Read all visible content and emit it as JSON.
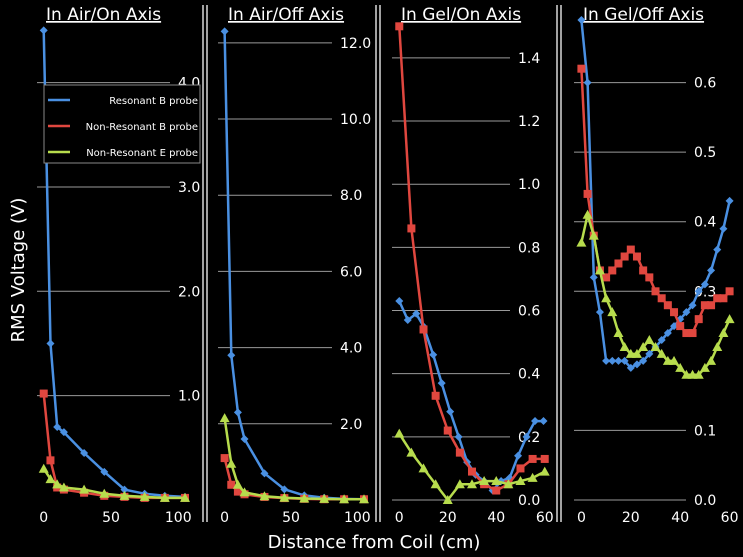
{
  "colors": {
    "background": "#000000",
    "gridline": "#9a9a9a",
    "resonant_b": "#4a90e2",
    "nonresonant_b": "#e0473f",
    "nonresonant_e": "#b7dc4d"
  },
  "axis_labels": {
    "y": "RMS Voltage (V)",
    "x": "Distance from Coil (cm)"
  },
  "legend": [
    {
      "label": "Resonant B probe",
      "marker": "diamond"
    },
    {
      "label": "Non-Resonant B probe",
      "marker": "square"
    },
    {
      "label": "Non-Resonant E probe",
      "marker": "triangle"
    }
  ],
  "chart_data": [
    {
      "type": "line",
      "title": "In Air/On Axis",
      "xlabel": "Distance from Coil (cm)",
      "ylabel": "RMS Voltage (V)",
      "xlim": [
        -5,
        105
      ],
      "ylim": [
        0,
        4.6
      ],
      "xticks": [
        0,
        50,
        100
      ],
      "yticks": [
        1.0,
        2.0,
        3.0,
        4.0
      ],
      "ytick_labels": [
        "1.0",
        "2.0",
        "3.0",
        "4.0"
      ],
      "series": [
        {
          "name": "Resonant B probe",
          "marker": "diamond",
          "x": [
            0,
            5,
            10,
            15,
            30,
            45,
            60,
            75,
            90,
            105
          ],
          "y": [
            4.5,
            1.5,
            0.7,
            0.65,
            0.45,
            0.27,
            0.1,
            0.06,
            0.04,
            0.03
          ]
        },
        {
          "name": "Non-Resonant B probe",
          "marker": "square",
          "x": [
            0,
            5,
            10,
            15,
            30,
            45,
            60,
            75,
            90,
            105
          ],
          "y": [
            1.02,
            0.38,
            0.12,
            0.1,
            0.07,
            0.04,
            0.03,
            0.02,
            0.02,
            0.02
          ]
        },
        {
          "name": "Non-Resonant E probe",
          "marker": "triangle",
          "x": [
            0,
            5,
            10,
            15,
            30,
            45,
            60,
            75,
            90,
            105
          ],
          "y": [
            0.3,
            0.2,
            0.15,
            0.12,
            0.1,
            0.06,
            0.04,
            0.03,
            0.02,
            0.02
          ]
        }
      ]
    },
    {
      "type": "line",
      "title": "In Air/Off Axis",
      "xlabel": "Distance from Coil (cm)",
      "ylabel": "RMS Voltage (V)",
      "xlim": [
        -5,
        105
      ],
      "ylim": [
        0,
        12.6
      ],
      "xticks": [
        0,
        50,
        100
      ],
      "yticks": [
        2.0,
        4.0,
        6.0,
        8.0,
        10.0,
        12.0
      ],
      "ytick_labels": [
        "2.0",
        "4.0",
        "6.0",
        "8.0",
        "10.0",
        "12.0"
      ],
      "series": [
        {
          "name": "Resonant B probe",
          "marker": "diamond",
          "x": [
            0,
            5,
            10,
            15,
            30,
            45,
            60,
            75,
            90,
            105
          ],
          "y": [
            12.3,
            3.8,
            2.3,
            1.6,
            0.7,
            0.28,
            0.12,
            0.06,
            0.03,
            0.02
          ]
        },
        {
          "name": "Non-Resonant B probe",
          "marker": "square",
          "x": [
            0,
            5,
            10,
            15,
            30,
            45,
            60,
            75,
            90,
            105
          ],
          "y": [
            1.1,
            0.4,
            0.22,
            0.15,
            0.08,
            0.05,
            0.03,
            0.02,
            0.02,
            0.02
          ]
        },
        {
          "name": "Non-Resonant E probe",
          "marker": "triangle",
          "x": [
            0,
            5,
            10,
            15,
            30,
            45,
            60,
            75,
            90,
            105
          ],
          "y": [
            2.15,
            0.95,
            0.4,
            0.2,
            0.1,
            0.06,
            0.04,
            0.03,
            0.02,
            0.02
          ]
        }
      ]
    },
    {
      "type": "line",
      "title": "In Gel/On Axis",
      "xlabel": "Distance from Coil (cm)",
      "ylabel": "RMS Voltage (V)",
      "xlim": [
        -3,
        63
      ],
      "ylim": [
        0,
        1.52
      ],
      "xticks": [
        0,
        20,
        40,
        60
      ],
      "yticks": [
        0.0,
        0.2,
        0.4,
        0.6,
        0.8,
        1.0,
        1.2,
        1.4
      ],
      "ytick_labels": [
        "0.0",
        "0.2",
        "0.4",
        "0.6",
        "0.8",
        "1.0",
        "1.2",
        "1.4"
      ],
      "series": [
        {
          "name": "Resonant B probe",
          "marker": "diamond",
          "x": [
            0,
            3.5,
            7,
            10,
            14,
            17.5,
            21,
            24.5,
            28,
            31.5,
            35,
            38.5,
            42,
            45.5,
            49,
            52.5,
            56,
            59.5
          ],
          "y": [
            0.63,
            0.57,
            0.59,
            0.55,
            0.46,
            0.37,
            0.28,
            0.2,
            0.12,
            0.08,
            0.06,
            0.03,
            0.06,
            0.07,
            0.14,
            0.2,
            0.25,
            0.25
          ]
        },
        {
          "name": "Non-Resonant B probe",
          "marker": "square",
          "x": [
            0,
            5,
            10,
            15,
            20,
            25,
            30,
            35,
            40,
            45,
            50,
            55,
            60
          ],
          "y": [
            1.5,
            0.86,
            0.54,
            0.33,
            0.22,
            0.15,
            0.09,
            0.05,
            0.03,
            0.05,
            0.1,
            0.13,
            0.13
          ]
        },
        {
          "name": "Non-Resonant E probe",
          "marker": "triangle",
          "x": [
            0,
            5,
            10,
            15,
            20,
            25,
            30,
            35,
            40,
            45,
            50,
            55,
            60
          ],
          "y": [
            0.21,
            0.15,
            0.1,
            0.05,
            0.0,
            0.05,
            0.05,
            0.06,
            0.06,
            0.05,
            0.06,
            0.07,
            0.09
          ]
        }
      ]
    },
    {
      "type": "line",
      "title": "In Gel/Off Axis",
      "xlabel": "Distance from Coil (cm)",
      "ylabel": "RMS Voltage (V)",
      "xlim": [
        -3,
        63
      ],
      "ylim": [
        0,
        0.69
      ],
      "xticks": [
        0,
        20,
        40,
        60
      ],
      "yticks": [
        0.0,
        0.1,
        0.3,
        0.4,
        0.5,
        0.6
      ],
      "ytick_labels": [
        "0.0",
        "0.1",
        "0.3",
        "0.4",
        "0.5",
        "0.6"
      ],
      "series": [
        {
          "name": "Resonant B probe",
          "marker": "diamond",
          "x": [
            0,
            2.5,
            5,
            7.5,
            10,
            12.5,
            15,
            17.5,
            20,
            22.5,
            25,
            27.5,
            30,
            32.5,
            35,
            37.5,
            40,
            42.5,
            45,
            47.5,
            50,
            52.5,
            55,
            57.5,
            60
          ],
          "y": [
            0.69,
            0.6,
            0.32,
            0.27,
            0.2,
            0.2,
            0.2,
            0.2,
            0.19,
            0.195,
            0.2,
            0.21,
            0.22,
            0.23,
            0.24,
            0.25,
            0.26,
            0.27,
            0.28,
            0.3,
            0.31,
            0.33,
            0.36,
            0.39,
            0.43
          ]
        },
        {
          "name": "Non-Resonant B probe",
          "marker": "square",
          "x": [
            0,
            2.5,
            5,
            7.5,
            10,
            12.5,
            15,
            17.5,
            20,
            22.5,
            25,
            27.5,
            30,
            32.5,
            35,
            37.5,
            40,
            42.5,
            45,
            47.5,
            50,
            52.5,
            55,
            57.5,
            60
          ],
          "y": [
            0.62,
            0.44,
            0.38,
            0.33,
            0.32,
            0.33,
            0.34,
            0.35,
            0.36,
            0.35,
            0.33,
            0.32,
            0.3,
            0.29,
            0.28,
            0.27,
            0.25,
            0.24,
            0.24,
            0.26,
            0.28,
            0.28,
            0.29,
            0.29,
            0.3
          ]
        },
        {
          "name": "Non-Resonant E probe",
          "marker": "triangle",
          "x": [
            0,
            2.5,
            5,
            7.5,
            10,
            12.5,
            15,
            17.5,
            20,
            22.5,
            25,
            27.5,
            30,
            32.5,
            35,
            37.5,
            40,
            42.5,
            45,
            47.5,
            50,
            52.5,
            55,
            57.5,
            60
          ],
          "y": [
            0.37,
            0.41,
            0.38,
            0.33,
            0.29,
            0.27,
            0.24,
            0.22,
            0.21,
            0.21,
            0.22,
            0.23,
            0.22,
            0.21,
            0.2,
            0.2,
            0.19,
            0.18,
            0.18,
            0.18,
            0.19,
            0.2,
            0.22,
            0.24,
            0.26
          ]
        }
      ]
    }
  ]
}
